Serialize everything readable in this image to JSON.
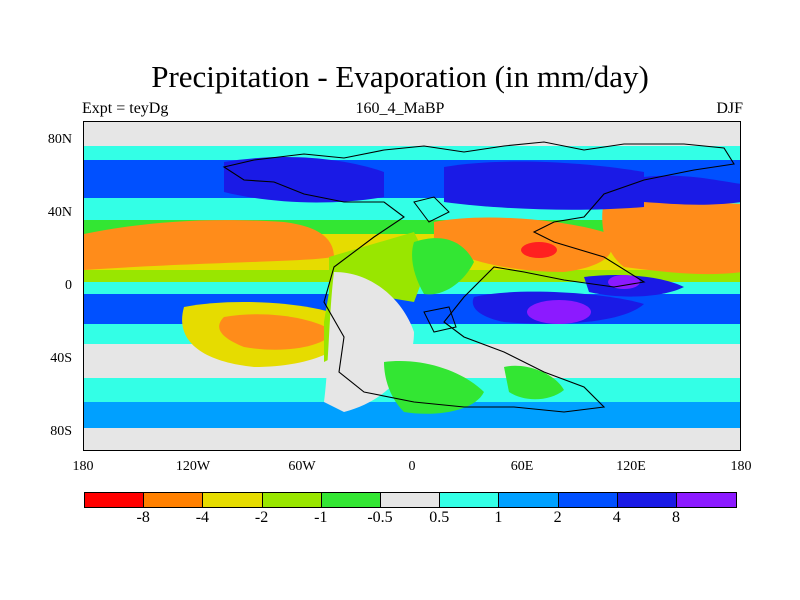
{
  "header": {
    "title": "Precipitation - Evaporation (in mm/day)",
    "left_label": "Expt = teyDg",
    "center_label": "160_4_MaBP",
    "right_label": "DJF"
  },
  "axes": {
    "lat_ticks": [
      "80N",
      "40N",
      "0",
      "40S",
      "80S"
    ],
    "lon_ticks": [
      "180",
      "120W",
      "60W",
      "0",
      "60E",
      "120E",
      "180"
    ]
  },
  "colorbar": {
    "colors": [
      "#ff0000",
      "#ff8000",
      "#e6dc00",
      "#99e600",
      "#33e633",
      "#e6e6e6",
      "#33ffe6",
      "#00a0ff",
      "#0050ff",
      "#1a1ae6",
      "#8c1aff"
    ],
    "labels": [
      "-8",
      "-4",
      "-2",
      "-1",
      "-0.5",
      "0.5",
      "1",
      "2",
      "4",
      "8"
    ]
  },
  "field_colors": {
    "orange": "#ff8c1a",
    "yellow": "#e6dc00",
    "lime": "#99e600",
    "green": "#33e633",
    "gray": "#e6e6e6",
    "cyan": "#33ffe6",
    "lightblue": "#00a0ff",
    "blue": "#0050ff",
    "navy": "#1a1ae6",
    "purple": "#8c1aff",
    "red": "#ff2020"
  }
}
